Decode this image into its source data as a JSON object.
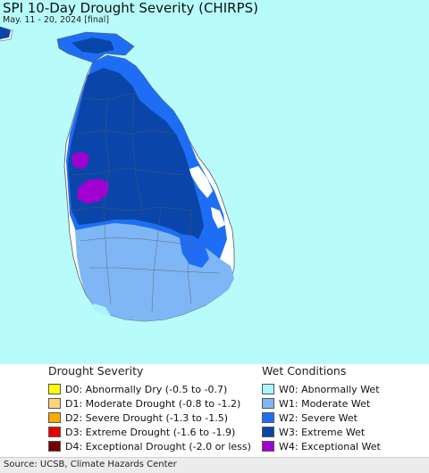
{
  "title": "SPI 10-Day Drought Severity (CHIRPS)",
  "subtitle": "May. 11 - 20, 2024 [final]",
  "drought_legend": {
    "heading": "Drought Severity",
    "items": [
      {
        "label": "D0: Abnormally Dry (-0.5 to -0.7)",
        "color": "#ffff00"
      },
      {
        "label": "D1: Moderate Drought (-0.8 to -1.2)",
        "color": "#fcd37f"
      },
      {
        "label": "D2: Severe Drought (-1.3 to -1.5)",
        "color": "#ffaa00"
      },
      {
        "label": "D3: Extreme Drought (-1.6 to -1.9)",
        "color": "#e60000"
      },
      {
        "label": "D4: Exceptional Drought (-2.0 or less)",
        "color": "#730000"
      }
    ]
  },
  "wet_legend": {
    "heading": "Wet Conditions",
    "items": [
      {
        "label": "W0: Abnormally Wet",
        "color": "#aaf5ff"
      },
      {
        "label": "W1: Moderate Wet",
        "color": "#7fb6f5"
      },
      {
        "label": "W2: Severe Wet",
        "color": "#1e6ef5"
      },
      {
        "label": "W3: Extreme Wet",
        "color": "#0a46aa"
      },
      {
        "label": "W4: Exceptional Wet",
        "color": "#a000d2"
      }
    ]
  },
  "source": "Source: UCSB, Climate Hazards Center",
  "map_colors": {
    "water": "#b8fbfb",
    "neutral_land": "#ffffff",
    "boundary": "#5a5a5a"
  }
}
